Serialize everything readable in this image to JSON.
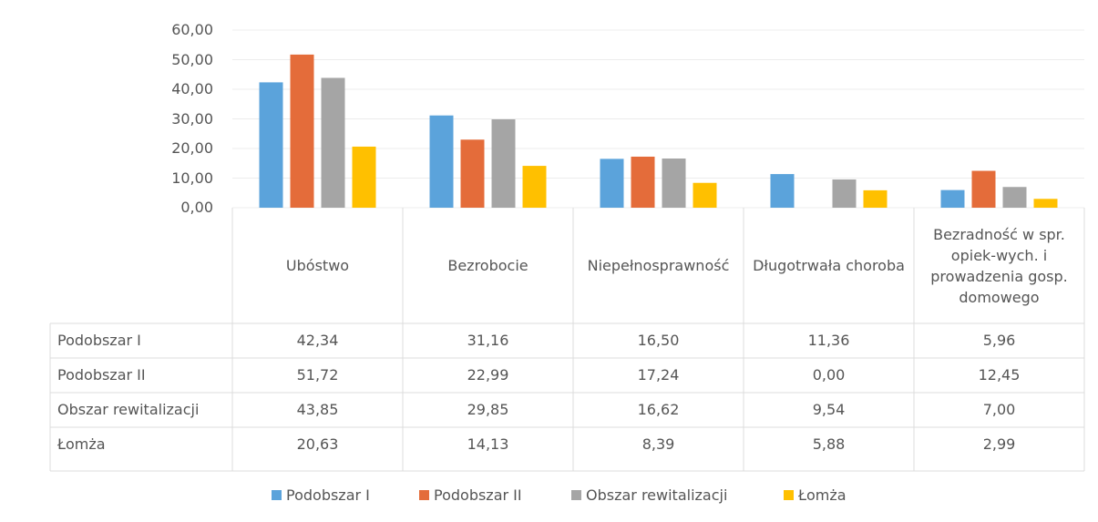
{
  "chart_data": {
    "type": "bar",
    "categories": [
      "Ubóstwo",
      "Bezrobocie",
      "Niepełnosprawność",
      "Długotrwała choroba",
      "Bezradność w spr. opiek-wych. i prowadzenia gosp. domowego"
    ],
    "series": [
      {
        "name": "Podobszar I",
        "color": "#5ba3db",
        "values": [
          42.34,
          31.16,
          16.5,
          11.36,
          5.96
        ],
        "value_labels": [
          "42,34",
          "31,16",
          "16,50",
          "11,36",
          "5,96"
        ]
      },
      {
        "name": "Podobszar II",
        "color": "#e46c3a",
        "values": [
          51.72,
          22.99,
          17.24,
          0.0,
          12.45
        ],
        "value_labels": [
          "51,72",
          "22,99",
          "17,24",
          "0,00",
          "12,45"
        ]
      },
      {
        "name": "Obszar rewitalizacji",
        "color": "#a5a5a5",
        "values": [
          43.85,
          29.85,
          16.62,
          9.54,
          7.0
        ],
        "value_labels": [
          "43,85",
          "29,85",
          "16,62",
          "9,54",
          "7,00"
        ]
      },
      {
        "name": "Łomża",
        "color": "#ffc000",
        "values": [
          20.63,
          14.13,
          8.39,
          5.88,
          2.99
        ],
        "value_labels": [
          "20,63",
          "14,13",
          "8,39",
          "5,88",
          "2,99"
        ]
      }
    ],
    "ylim": [
      0,
      60
    ],
    "yticks": [
      {
        "value": 0,
        "label": "0,00"
      },
      {
        "value": 10,
        "label": "10,00"
      },
      {
        "value": 20,
        "label": "20,00"
      },
      {
        "value": 30,
        "label": "30,00"
      },
      {
        "value": 40,
        "label": "40,00"
      },
      {
        "value": 50,
        "label": "50,00"
      },
      {
        "value": 60,
        "label": "60,00"
      }
    ],
    "grid": true,
    "legend": "bottom"
  }
}
